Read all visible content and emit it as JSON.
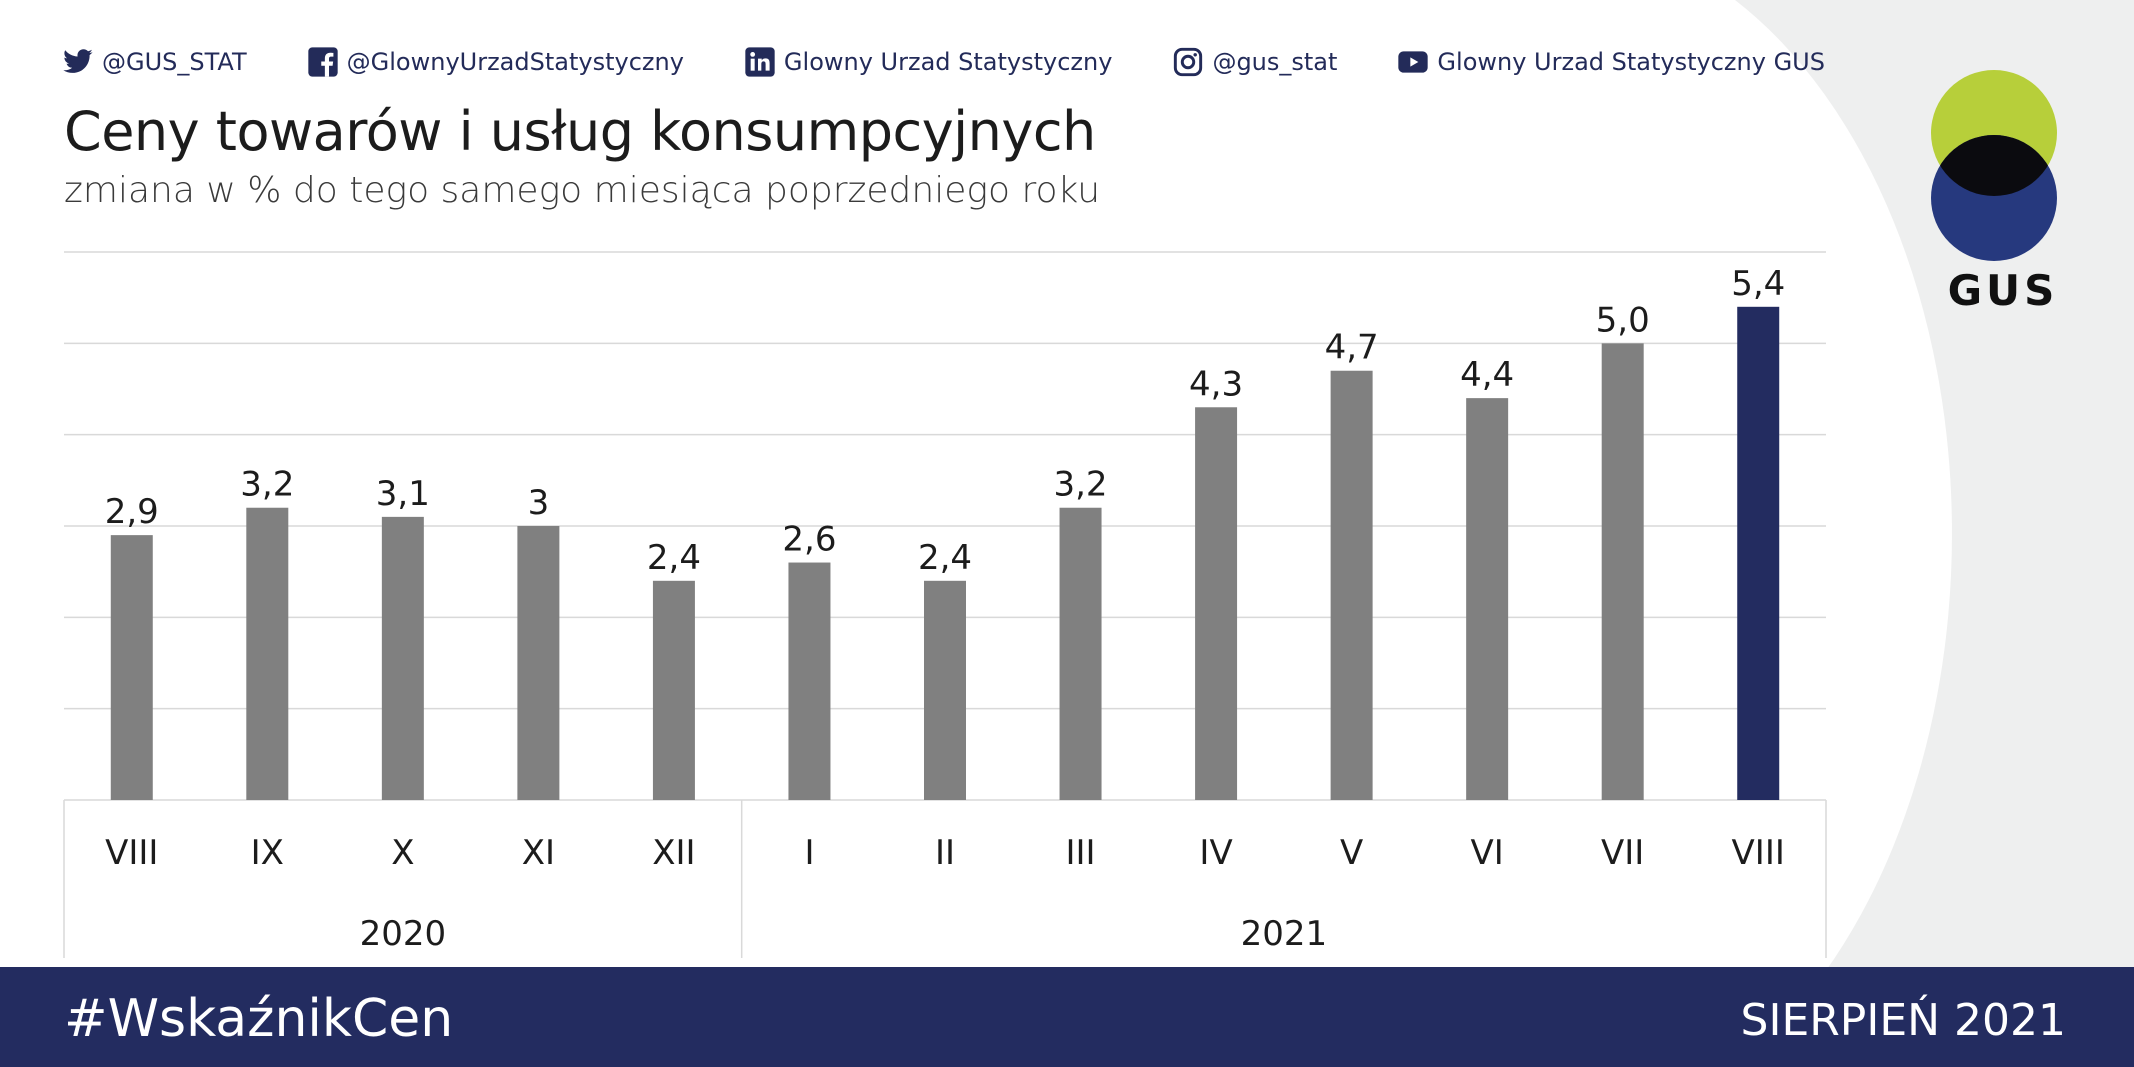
{
  "header": {
    "social": [
      {
        "icon": "twitter-icon",
        "label": "@GUS_STAT"
      },
      {
        "icon": "facebook-icon",
        "label": "@GlownyUrzadStatystyczny"
      },
      {
        "icon": "linkedin-icon",
        "label": "Glowny Urzad Statystyczny"
      },
      {
        "icon": "instagram-icon",
        "label": "@gus_stat"
      },
      {
        "icon": "youtube-icon",
        "label": "Glowny Urzad Statystyczny GUS"
      }
    ]
  },
  "logo": {
    "text": "GUS",
    "colors": {
      "top": "#b7cf3a",
      "bottom": "#26397e",
      "overlap": "#0b0b0f"
    }
  },
  "footer": {
    "hashtag": "#WskaźnikCen",
    "period": "SIERPIEŃ 2021"
  },
  "colors": {
    "bar": "#808080",
    "highlight": "#232c60",
    "grid": "#d9d9d9",
    "text": "#1c1c1c",
    "footer_bg": "#232c60",
    "arc_bg": "#eeefef"
  },
  "chart_data": {
    "type": "bar",
    "title": "Ceny towarów i usług konsumpcyjnych",
    "subtitle": "zmiana w % do tego samego miesiąca poprzedniego roku",
    "categories": [
      "VIII",
      "IX",
      "X",
      "XI",
      "XII",
      "I",
      "II",
      "III",
      "IV",
      "V",
      "VI",
      "VII",
      "VIII"
    ],
    "groups": [
      {
        "label": "2020",
        "count": 5
      },
      {
        "label": "2021",
        "count": 8
      }
    ],
    "values": [
      2.9,
      3.2,
      3.1,
      3.0,
      2.4,
      2.6,
      2.4,
      3.2,
      4.3,
      4.7,
      4.4,
      5.0,
      5.4
    ],
    "data_labels": [
      "2,9",
      "3,2",
      "3,1",
      "3",
      "2,4",
      "2,6",
      "2,4",
      "3,2",
      "4,3",
      "4,7",
      "4,4",
      "5,0",
      "5,4"
    ],
    "highlight_index": 12,
    "ylim": [
      0,
      6
    ],
    "grid": true,
    "legend": false
  }
}
